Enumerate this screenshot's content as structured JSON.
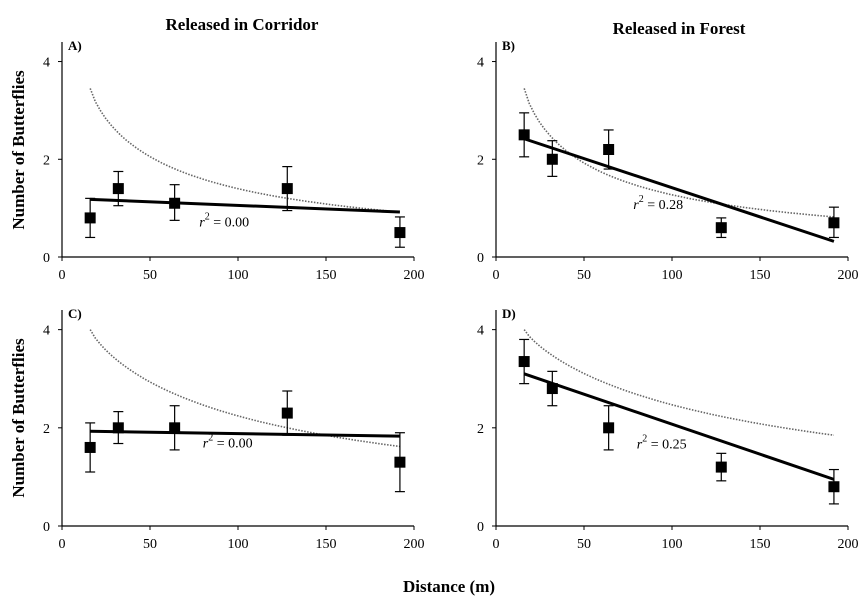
{
  "figure": {
    "column_titles": [
      "Released in Corridor",
      "Released in Forest"
    ],
    "ylabel": "Number of Butterflies",
    "xlabel": "Distance (m)"
  },
  "chart_data": [
    {
      "type": "scatter",
      "panel": "A)",
      "column": "Released in Corridor",
      "xlim": [
        0,
        200
      ],
      "ylim": [
        0,
        4.4
      ],
      "xticks": [
        0,
        50,
        100,
        150,
        200
      ],
      "yticks": [
        0,
        2,
        4
      ],
      "points": {
        "x": [
          16,
          32,
          64,
          128,
          192
        ],
        "y": [
          0.8,
          1.4,
          1.1,
          1.4,
          0.5
        ],
        "err_low": [
          0.4,
          0.35,
          0.35,
          0.45,
          0.3
        ],
        "err_high": [
          0.4,
          0.35,
          0.38,
          0.45,
          0.32
        ]
      },
      "fit_line": {
        "x": [
          16,
          192
        ],
        "y": [
          1.18,
          0.92
        ]
      },
      "dotted_curve": {
        "x_start": 16,
        "x_end": 192,
        "y_start": 3.45,
        "y_end": 0.92
      },
      "r2_label": "= 0.00",
      "r2_anchor": {
        "x": 78,
        "y": 0.62
      }
    },
    {
      "type": "scatter",
      "panel": "B)",
      "column": "Released in Forest",
      "xlim": [
        0,
        200
      ],
      "ylim": [
        0,
        4.4
      ],
      "xticks": [
        0,
        50,
        100,
        150,
        200
      ],
      "yticks": [
        0,
        2,
        4
      ],
      "points": {
        "x": [
          16,
          32,
          64,
          128,
          192
        ],
        "y": [
          2.5,
          2.0,
          2.2,
          0.6,
          0.7
        ],
        "err_low": [
          0.45,
          0.35,
          0.4,
          0.2,
          0.3
        ],
        "err_high": [
          0.45,
          0.38,
          0.4,
          0.2,
          0.32
        ]
      },
      "fit_line": {
        "x": [
          16,
          192
        ],
        "y": [
          2.42,
          0.32
        ]
      },
      "dotted_curve": {
        "x_start": 16,
        "x_end": 192,
        "y_start": 3.45,
        "y_end": 0.82
      },
      "r2_label": "= 0.28",
      "r2_anchor": {
        "x": 78,
        "y": 0.98
      }
    },
    {
      "type": "scatter",
      "panel": "C)",
      "column": "Released in Corridor",
      "xlim": [
        0,
        200
      ],
      "ylim": [
        0,
        4.4
      ],
      "xticks": [
        0,
        50,
        100,
        150,
        200
      ],
      "yticks": [
        0,
        2,
        4
      ],
      "points": {
        "x": [
          16,
          32,
          64,
          128,
          192
        ],
        "y": [
          1.6,
          2.0,
          2.0,
          2.3,
          1.3
        ],
        "err_low": [
          0.5,
          0.32,
          0.45,
          0.45,
          0.6
        ],
        "err_high": [
          0.5,
          0.33,
          0.45,
          0.45,
          0.6
        ]
      },
      "fit_line": {
        "x": [
          16,
          192
        ],
        "y": [
          1.93,
          1.83
        ]
      },
      "dotted_curve": {
        "x_start": 16,
        "x_end": 192,
        "y_start": 4.0,
        "y_end": 1.62
      },
      "r2_label": "= 0.00",
      "r2_anchor": {
        "x": 80,
        "y": 1.6
      }
    },
    {
      "type": "scatter",
      "panel": "D)",
      "column": "Released in Forest",
      "xlim": [
        0,
        200
      ],
      "ylim": [
        0,
        4.4
      ],
      "xticks": [
        0,
        50,
        100,
        150,
        200
      ],
      "yticks": [
        0,
        2,
        4
      ],
      "points": {
        "x": [
          16,
          32,
          64,
          128,
          192
        ],
        "y": [
          3.35,
          2.8,
          2.0,
          1.2,
          0.8
        ],
        "err_low": [
          0.45,
          0.35,
          0.45,
          0.28,
          0.35
        ],
        "err_high": [
          0.45,
          0.35,
          0.45,
          0.28,
          0.35
        ]
      },
      "fit_line": {
        "x": [
          16,
          192
        ],
        "y": [
          3.1,
          0.95
        ]
      },
      "dotted_curve": {
        "x_start": 16,
        "x_end": 192,
        "y_start": 4.0,
        "y_end": 1.85
      },
      "r2_label": "= 0.25",
      "r2_anchor": {
        "x": 80,
        "y": 1.58
      }
    }
  ]
}
